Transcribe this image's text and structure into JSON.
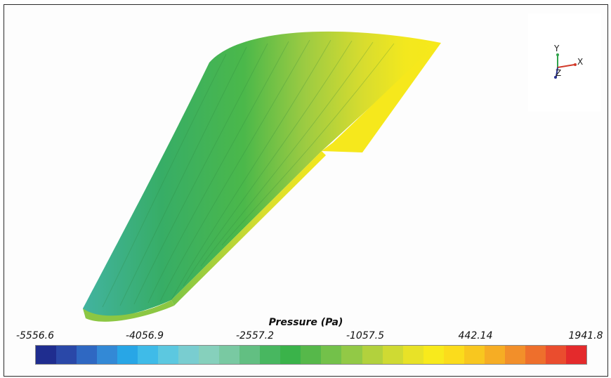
{
  "triad": {
    "y": "Y",
    "x": "X",
    "z": "Z"
  },
  "colorbar": {
    "title": "Pressure (Pa)",
    "tick_labels": [
      "-5556.6",
      "-4056.9",
      "-2557.2",
      "-1057.5",
      "442.14",
      "1941.8"
    ],
    "range": [
      -5556.6,
      1941.8
    ],
    "colors": [
      "#1f2d8f",
      "#2a48a8",
      "#2f68c2",
      "#3389d6",
      "#28a6e6",
      "#3fbbe8",
      "#5cc8e0",
      "#79cdd0",
      "#86d0bc",
      "#79c9a2",
      "#62bf82",
      "#48b760",
      "#3ab34a",
      "#56b84a",
      "#73c14a",
      "#92c946",
      "#b2d13d",
      "#cfda33",
      "#e8e227",
      "#f8ea1c",
      "#fbdc1c",
      "#f8c71f",
      "#f6ad24",
      "#f28f2a",
      "#ee6f2c",
      "#ea4d2e",
      "#e42a2c"
    ]
  }
}
